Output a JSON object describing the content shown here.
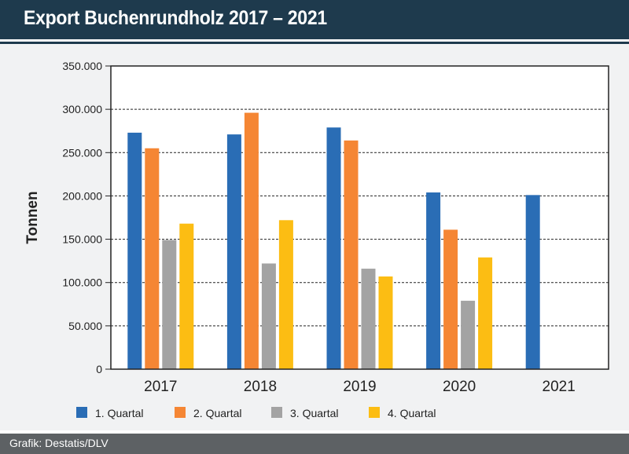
{
  "header": {
    "title": "Export Buchenrundholz 2017 – 2021"
  },
  "footer": {
    "source": "Grafik: Destatis/DLV"
  },
  "colors": {
    "header_bg": "#1e3a4d",
    "panel_bg": "#f1f2f3",
    "footer_bg": "#5d6164"
  },
  "chart_data": {
    "type": "bar",
    "title": "Export Buchenrundholz 2017 – 2021",
    "xlabel": "",
    "ylabel": "Tonnen",
    "categories": [
      "2017",
      "2018",
      "2019",
      "2020",
      "2021"
    ],
    "ylim": [
      0,
      350000
    ],
    "yticks": [
      0,
      50000,
      100000,
      150000,
      200000,
      250000,
      300000,
      350000
    ],
    "ytick_labels": [
      "0",
      "50.000",
      "100.000",
      "150.000",
      "200.000",
      "250.000",
      "300.000",
      "350.000"
    ],
    "grid": true,
    "legend_position": "bottom-left",
    "series": [
      {
        "name": "1. Quartal",
        "color": "#2a6db5",
        "values": [
          273000,
          271000,
          279000,
          204000,
          201000
        ]
      },
      {
        "name": "2. Quartal",
        "color": "#f58634",
        "values": [
          255000,
          296000,
          264000,
          161000,
          null
        ]
      },
      {
        "name": "3. Quartal",
        "color": "#a3a3a3",
        "values": [
          149000,
          122000,
          116000,
          79000,
          null
        ]
      },
      {
        "name": "4. Quartal",
        "color": "#fcbd13",
        "values": [
          168000,
          172000,
          107000,
          129000,
          null
        ]
      }
    ]
  }
}
